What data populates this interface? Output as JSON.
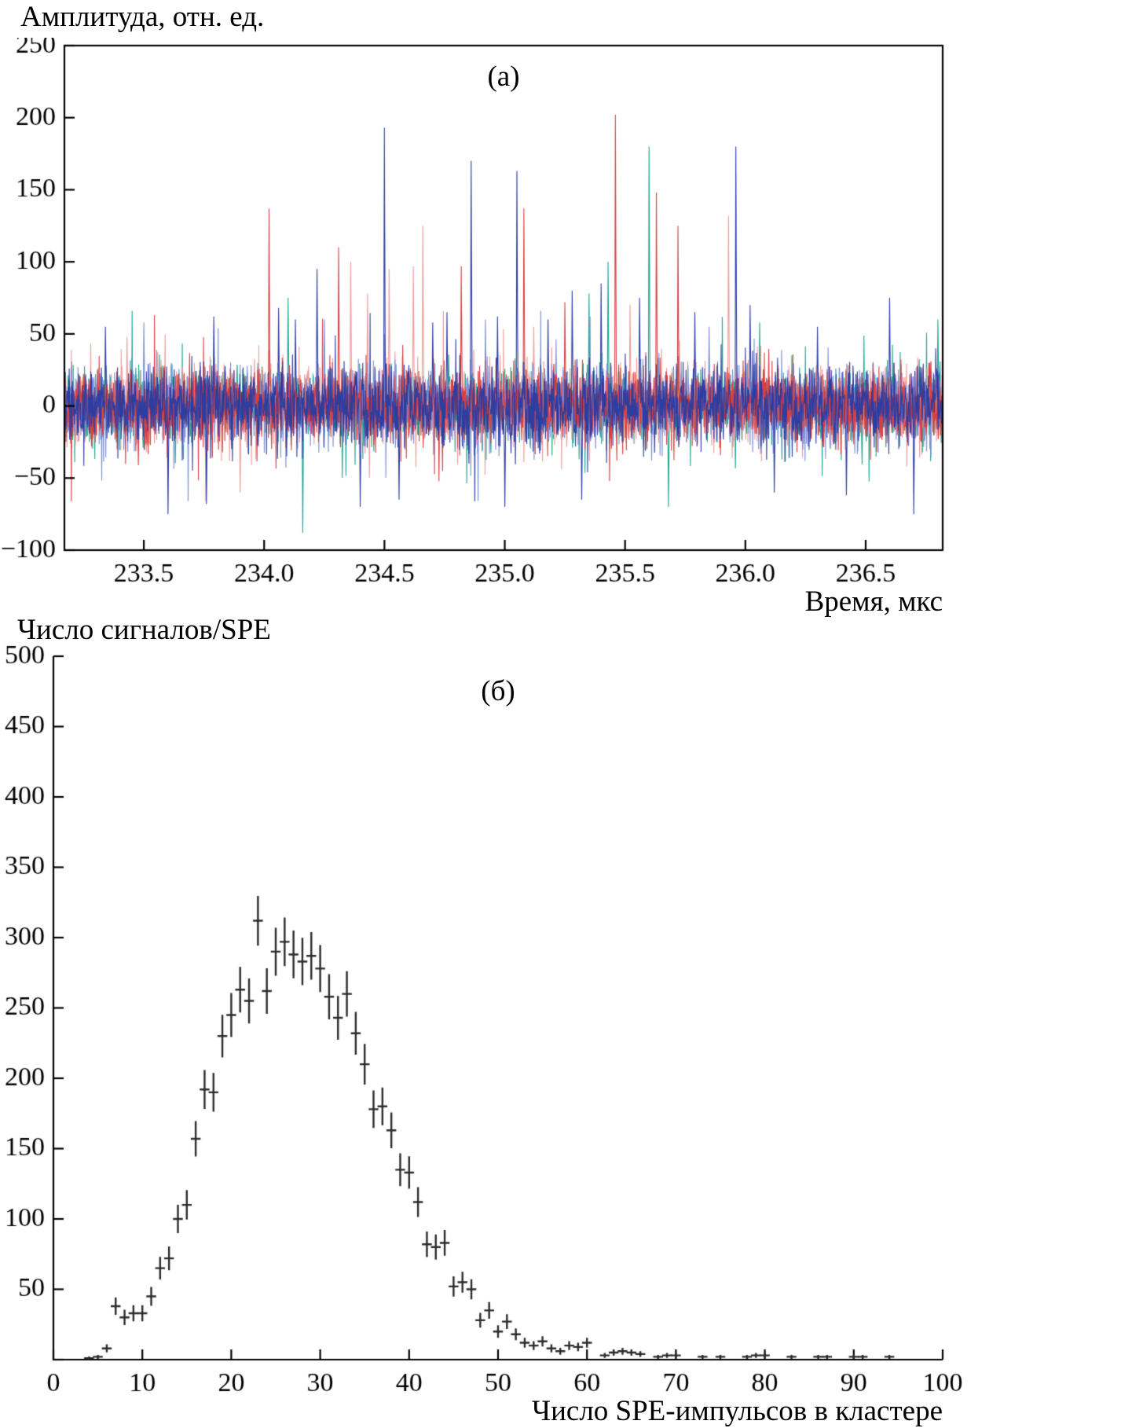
{
  "chart_data": [
    {
      "type": "line",
      "panel_label": "(а)",
      "ylabel": "Амплитуда, отн. ед.",
      "xlabel": "Время, мкс",
      "xlim": [
        233.17,
        236.82
      ],
      "ylim": [
        -100,
        250
      ],
      "xticks": [
        233.5,
        234.0,
        234.5,
        235.0,
        235.5,
        236.0,
        236.5
      ],
      "xtick_labels": [
        "233.5",
        "234.0",
        "234.5",
        "235.0",
        "235.5",
        "236.0",
        "236.5"
      ],
      "yticks": [
        -100,
        -50,
        0,
        50,
        100,
        150,
        200,
        250
      ],
      "ytick_labels": [
        "−100",
        "−50",
        "0",
        "50",
        "100",
        "150",
        "200",
        "250"
      ],
      "grid": false,
      "frame": "box",
      "noise": {
        "sigma": 13,
        "samples": 2400,
        "burst_prob": 0.02,
        "burst_gain": 2.4
      },
      "series": [
        {
          "name": "teal",
          "color": "#1ca48e"
        },
        {
          "name": "salmon",
          "color": "#f09a9a"
        },
        {
          "name": "lightblue",
          "color": "#7b8fd8"
        },
        {
          "name": "red",
          "color": "#d64040"
        },
        {
          "name": "darkblue",
          "color": "#2e3da0"
        }
      ],
      "spikes": [
        [
          233.34,
          55,
          "darkblue"
        ],
        [
          233.43,
          48,
          "salmon"
        ],
        [
          233.5,
          58,
          "lightblue"
        ],
        [
          233.6,
          -75,
          "darkblue"
        ],
        [
          233.76,
          -68,
          "darkblue"
        ],
        [
          233.79,
          62,
          "darkblue"
        ],
        [
          233.9,
          -60,
          "salmon"
        ],
        [
          234.02,
          137,
          "red"
        ],
        [
          234.06,
          68,
          "darkblue"
        ],
        [
          234.1,
          75,
          "teal"
        ],
        [
          234.13,
          60,
          "darkblue"
        ],
        [
          234.16,
          -88,
          "teal"
        ],
        [
          234.22,
          95,
          "darkblue"
        ],
        [
          234.25,
          60,
          "lightblue"
        ],
        [
          234.31,
          110,
          "red"
        ],
        [
          234.36,
          100,
          "salmon"
        ],
        [
          234.4,
          -70,
          "darkblue"
        ],
        [
          234.43,
          78,
          "salmon"
        ],
        [
          234.5,
          193,
          "darkblue"
        ],
        [
          234.52,
          95,
          "salmon"
        ],
        [
          234.56,
          -65,
          "darkblue"
        ],
        [
          234.62,
          97,
          "salmon"
        ],
        [
          234.66,
          125,
          "salmon"
        ],
        [
          234.7,
          58,
          "darkblue"
        ],
        [
          234.76,
          65,
          "darkblue"
        ],
        [
          234.82,
          97,
          "red"
        ],
        [
          234.86,
          170,
          "darkblue"
        ],
        [
          234.92,
          60,
          "lightblue"
        ],
        [
          234.97,
          62,
          "darkblue"
        ],
        [
          235.0,
          -70,
          "darkblue"
        ],
        [
          235.05,
          163,
          "darkblue"
        ],
        [
          235.08,
          137,
          "red"
        ],
        [
          235.12,
          55,
          "salmon"
        ],
        [
          235.18,
          60,
          "darkblue"
        ],
        [
          235.25,
          72,
          "red"
        ],
        [
          235.28,
          80,
          "darkblue"
        ],
        [
          235.32,
          -65,
          "darkblue"
        ],
        [
          235.35,
          78,
          "teal"
        ],
        [
          235.4,
          85,
          "darkblue"
        ],
        [
          235.43,
          100,
          "teal"
        ],
        [
          235.46,
          202,
          "red"
        ],
        [
          235.52,
          70,
          "salmon"
        ],
        [
          235.56,
          75,
          "darkblue"
        ],
        [
          235.6,
          180,
          "teal"
        ],
        [
          235.63,
          148,
          "red"
        ],
        [
          235.68,
          -70,
          "teal"
        ],
        [
          235.72,
          125,
          "red"
        ],
        [
          235.79,
          65,
          "darkblue"
        ],
        [
          235.85,
          55,
          "lightblue"
        ],
        [
          235.93,
          132,
          "salmon"
        ],
        [
          235.96,
          180,
          "darkblue"
        ],
        [
          236.02,
          70,
          "darkblue"
        ],
        [
          236.06,
          58,
          "teal"
        ],
        [
          236.12,
          -60,
          "darkblue"
        ],
        [
          236.3,
          55,
          "darkblue"
        ],
        [
          236.42,
          -62,
          "darkblue"
        ],
        [
          236.6,
          75,
          "darkblue"
        ],
        [
          236.7,
          -75,
          "darkblue"
        ],
        [
          236.8,
          60,
          "teal"
        ]
      ]
    },
    {
      "type": "scatter",
      "marker": "cross-with-error-bars",
      "marker_color": "#2b2b2b",
      "panel_label": "(б)",
      "ylabel": "Число сигналов/SPE",
      "xlabel": "Число SPE-импульсов в кластере",
      "xlim": [
        0,
        100
      ],
      "ylim": [
        0,
        500
      ],
      "xticks": [
        0,
        10,
        20,
        30,
        40,
        50,
        60,
        70,
        80,
        90,
        100
      ],
      "xtick_labels": [
        "0",
        "10",
        "20",
        "30",
        "40",
        "50",
        "60",
        "70",
        "80",
        "90",
        "100"
      ],
      "yticks": [
        0,
        50,
        100,
        150,
        200,
        250,
        300,
        350,
        400,
        450,
        500
      ],
      "ytick_labels": [
        "",
        "50",
        "100",
        "150",
        "200",
        "250",
        "300",
        "350",
        "400",
        "450",
        "500"
      ],
      "grid": false,
      "frame": "left-bottom",
      "error_bars": {
        "x_half_width": 0.55,
        "y_half_length": "sqrt(N)"
      },
      "points": [
        [
          4,
          1
        ],
        [
          5,
          2
        ],
        [
          6,
          8
        ],
        [
          7,
          38
        ],
        [
          8,
          30
        ],
        [
          9,
          33
        ],
        [
          10,
          33
        ],
        [
          11,
          45
        ],
        [
          12,
          65
        ],
        [
          13,
          72
        ],
        [
          14,
          100
        ],
        [
          15,
          110
        ],
        [
          16,
          157
        ],
        [
          17,
          192
        ],
        [
          18,
          190
        ],
        [
          19,
          230
        ],
        [
          20,
          245
        ],
        [
          21,
          263
        ],
        [
          22,
          255
        ],
        [
          23,
          312
        ],
        [
          24,
          262
        ],
        [
          25,
          290
        ],
        [
          26,
          297
        ],
        [
          27,
          288
        ],
        [
          28,
          283
        ],
        [
          29,
          287
        ],
        [
          30,
          278
        ],
        [
          31,
          258
        ],
        [
          32,
          243
        ],
        [
          33,
          260
        ],
        [
          34,
          232
        ],
        [
          35,
          210
        ],
        [
          36,
          178
        ],
        [
          37,
          180
        ],
        [
          38,
          163
        ],
        [
          39,
          135
        ],
        [
          40,
          133
        ],
        [
          41,
          112
        ],
        [
          42,
          82
        ],
        [
          43,
          80
        ],
        [
          44,
          83
        ],
        [
          45,
          52
        ],
        [
          46,
          55
        ],
        [
          47,
          50
        ],
        [
          48,
          28
        ],
        [
          49,
          35
        ],
        [
          50,
          20
        ],
        [
          51,
          27
        ],
        [
          52,
          18
        ],
        [
          53,
          12
        ],
        [
          54,
          10
        ],
        [
          55,
          13
        ],
        [
          56,
          8
        ],
        [
          57,
          6
        ],
        [
          58,
          10
        ],
        [
          59,
          9
        ],
        [
          60,
          12
        ],
        [
          62,
          3
        ],
        [
          63,
          5
        ],
        [
          64,
          6
        ],
        [
          65,
          5
        ],
        [
          66,
          4
        ],
        [
          68,
          2
        ],
        [
          69,
          3
        ],
        [
          70,
          3
        ],
        [
          73,
          2
        ],
        [
          75,
          2
        ],
        [
          78,
          2
        ],
        [
          79,
          3
        ],
        [
          80,
          3
        ],
        [
          83,
          2
        ],
        [
          86,
          2
        ],
        [
          87,
          2
        ],
        [
          90,
          2
        ],
        [
          91,
          2
        ],
        [
          94,
          2
        ]
      ]
    }
  ]
}
